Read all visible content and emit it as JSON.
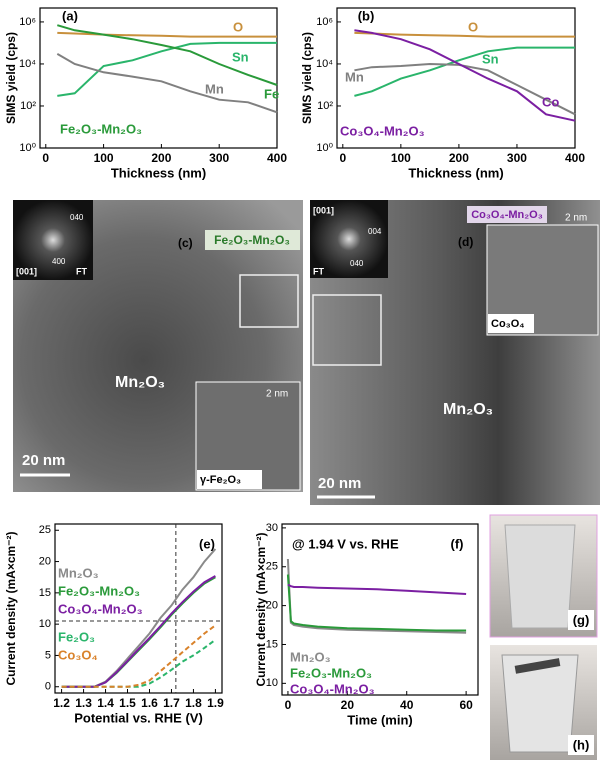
{
  "chart_data": [
    {
      "type": "line",
      "panel_label": "(a)",
      "y_label": "SIMS yield (cps)",
      "x_label": "Thickness (nm)",
      "annotation": "Fe₂O₃-Mn₂O₃",
      "annotation_color": "#2a9a3a",
      "log_y": true,
      "x": [
        20,
        50,
        100,
        150,
        200,
        250,
        300,
        350,
        400
      ],
      "xlim": [
        -10,
        400
      ],
      "xticks": [
        0,
        100,
        200,
        300,
        400
      ],
      "ylim": [
        1,
        4600000
      ],
      "yticks": [
        {
          "value": 1,
          "label": "10⁰"
        },
        {
          "value": 100,
          "label": "10²"
        },
        {
          "value": 10000,
          "label": "10⁴"
        },
        {
          "value": 1000000,
          "label": "10⁶"
        }
      ],
      "series": [
        {
          "name": "O",
          "color": "#c8903c",
          "values": [
            300000,
            280000,
            250000,
            230000,
            220000,
            200000,
            200000,
            200000,
            200000
          ]
        },
        {
          "name": "Sn",
          "color": "#2ab56b",
          "values": [
            300,
            400,
            8000,
            15000,
            40000,
            90000,
            100000,
            100000,
            100000
          ]
        },
        {
          "name": "Mn",
          "color": "#808080",
          "values": [
            30000,
            10000,
            4000,
            2500,
            1500,
            500,
            200,
            150,
            50
          ]
        },
        {
          "name": "Fe",
          "color": "#2a9a3a",
          "values": [
            700000,
            400000,
            250000,
            150000,
            80000,
            40000,
            10000,
            3000,
            1000
          ]
        }
      ]
    },
    {
      "type": "line",
      "panel_label": "(b)",
      "y_label": "SIMS yield (cps)",
      "x_label": "Thickness (nm)",
      "annotation": "Co₃O₄-Mn₂O₃",
      "annotation_color": "#7b1fa2",
      "log_y": true,
      "x": [
        20,
        50,
        100,
        150,
        200,
        250,
        300,
        350,
        400
      ],
      "xlim": [
        -10,
        400
      ],
      "xticks": [
        0,
        100,
        200,
        300,
        400
      ],
      "ylim": [
        1,
        4600000
      ],
      "yticks": [
        {
          "value": 1,
          "label": "10⁰"
        },
        {
          "value": 100,
          "label": "10²"
        },
        {
          "value": 10000,
          "label": "10⁴"
        },
        {
          "value": 1000000,
          "label": "10⁶"
        }
      ],
      "series": [
        {
          "name": "O",
          "color": "#c8903c",
          "values": [
            300000,
            280000,
            250000,
            230000,
            220000,
            200000,
            200000,
            200000,
            200000
          ]
        },
        {
          "name": "Sn",
          "color": "#2ab56b",
          "values": [
            300,
            500,
            2000,
            5000,
            15000,
            40000,
            60000,
            60000,
            60000
          ]
        },
        {
          "name": "Mn",
          "color": "#808080",
          "values": [
            5000,
            7000,
            8000,
            10000,
            9000,
            5000,
            1000,
            200,
            40
          ]
        },
        {
          "name": "Co",
          "color": "#7b1fa2",
          "values": [
            400000,
            300000,
            150000,
            50000,
            10000,
            2000,
            500,
            40,
            20
          ]
        }
      ]
    },
    {
      "type": "line",
      "panel_label": "(e)",
      "y_label": "Current density (mA×cm⁻²)",
      "x_label": "Potential vs. RHE (V)",
      "x": [
        1.2,
        1.3,
        1.35,
        1.4,
        1.45,
        1.5,
        1.55,
        1.6,
        1.65,
        1.7,
        1.75,
        1.8,
        1.85,
        1.9
      ],
      "xlim": [
        1.17,
        1.93
      ],
      "xticks": [
        1.2,
        1.3,
        1.4,
        1.5,
        1.6,
        1.7,
        1.8,
        1.9
      ],
      "ylim": [
        -1,
        26
      ],
      "yticks": [
        0,
        5,
        10,
        15,
        20,
        25
      ],
      "reference_x": 1.72,
      "reference_y": 10.5,
      "series": [
        {
          "name": "Mn₂O₃",
          "color": "#8a8a8a",
          "values": [
            0,
            0,
            0,
            0.8,
            2.5,
            4.5,
            6.5,
            8.5,
            11,
            13,
            15.5,
            17.5,
            20,
            22
          ]
        },
        {
          "name": "Fe₂O₃-Mn₂O₃",
          "color": "#2a9a3a",
          "values": [
            0,
            0,
            0,
            0.7,
            2.2,
            4,
            5.8,
            7.6,
            9.5,
            11.5,
            13.3,
            15,
            16.5,
            17.5
          ]
        },
        {
          "name": "Co₃O₄-Mn₂O₃",
          "color": "#7b1fa2",
          "values": [
            0,
            0,
            0,
            0.7,
            2.3,
            4.1,
            6,
            7.8,
            9.7,
            11.7,
            13.5,
            15.2,
            16.7,
            17.7
          ]
        },
        {
          "name": "Fe₂O₃",
          "color": "#2ab56b",
          "dashed": true,
          "values": [
            0,
            0,
            0,
            0,
            0,
            0,
            0,
            0.5,
            1.5,
            2.7,
            4,
            5,
            6.2,
            7.5
          ]
        },
        {
          "name": "Co₃O₄",
          "color": "#d9822b",
          "dashed": true,
          "values": [
            0,
            0,
            0,
            0,
            0,
            0,
            0.3,
            1,
            2.5,
            4,
            5.5,
            7,
            8.5,
            9.8
          ]
        }
      ]
    },
    {
      "type": "line",
      "panel_label": "(f)",
      "y_label": "Current density (mA×cm⁻²)",
      "x_label": "Time (min)",
      "annotation": "@ 1.94 V vs. RHE",
      "annotation_color": "#000000",
      "x": [
        0,
        1,
        2,
        5,
        10,
        20,
        30,
        40,
        50,
        60
      ],
      "xlim": [
        -2,
        64
      ],
      "xticks": [
        0,
        20,
        40,
        60
      ],
      "ylim": [
        8.5,
        30.5
      ],
      "yticks": [
        10,
        15,
        20,
        25,
        30
      ],
      "series": [
        {
          "name": "Mn₂O₃",
          "color": "#8a8a8a",
          "values": [
            26,
            17.8,
            17.5,
            17.3,
            17.1,
            16.9,
            16.8,
            16.7,
            16.6,
            16.5
          ]
        },
        {
          "name": "Fe₂O₃-Mn₂O₃",
          "color": "#2a9a3a",
          "values": [
            24,
            18,
            17.7,
            17.5,
            17.3,
            17.1,
            17,
            16.9,
            16.8,
            16.8
          ]
        },
        {
          "name": "Co₃O₄-Mn₂O₃",
          "color": "#7b1fa2",
          "values": [
            22.7,
            22.5,
            22.4,
            22.4,
            22.3,
            22.2,
            22.1,
            21.9,
            21.7,
            21.5
          ]
        }
      ]
    }
  ],
  "images": [
    {
      "label": "(c)",
      "sample": "Fe₂O₃-Mn₂O₃",
      "fft_spots": [
        "040",
        "400"
      ],
      "zone": "[001]",
      "fft": "FT",
      "phase": "Mn₂O₃",
      "inset_scale": "2 nm",
      "inset_phase": "γ-Fe₂O₃",
      "scale": "20 nm"
    },
    {
      "label": "(d)",
      "sample": "Co₃O₄-Mn₂O₃",
      "fft_spots": [
        "004",
        "040"
      ],
      "zone": "[001]",
      "fft": "FT",
      "phase": "Mn₂O₃",
      "inset_scale": "2 nm",
      "inset_phase": "Co₃O₄",
      "scale": "20 nm"
    }
  ],
  "photos": [
    {
      "label": "(g)"
    },
    {
      "label": "(h)"
    }
  ]
}
